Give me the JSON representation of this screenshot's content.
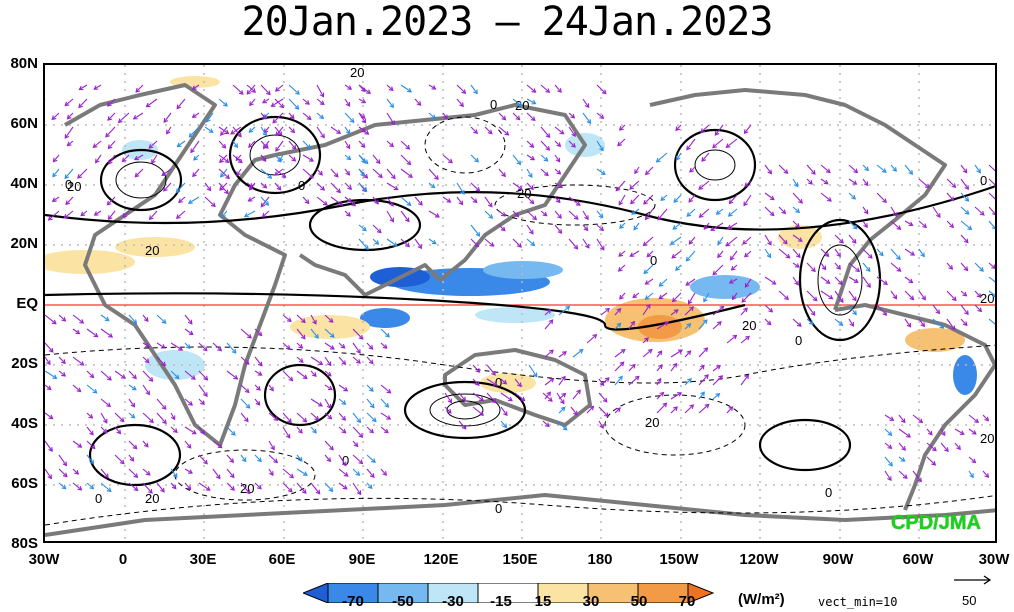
{
  "title": "20Jan.2023 – 24Jan.2023",
  "lat_labels": [
    "80N",
    "60N",
    "40N",
    "20N",
    "EQ",
    "20S",
    "40S",
    "60S",
    "80S"
  ],
  "lon_labels": [
    "30W",
    "0",
    "30E",
    "60E",
    "90E",
    "120E",
    "150E",
    "180",
    "150W",
    "120W",
    "90W",
    "60W",
    "30W"
  ],
  "colorbar": {
    "unit_label": "(W/m²)",
    "tick_labels": [
      "-70",
      "-50",
      "-30",
      "-15",
      "15",
      "30",
      "50",
      "70"
    ],
    "colors": [
      "#1e5fd6",
      "#3a88e8",
      "#76b8f0",
      "#bfe6f7",
      "#ffffff",
      "#fbe3a3",
      "#f7c173",
      "#f29a45",
      "#ee7320"
    ]
  },
  "vector_min_label": "vect_min=10",
  "reference_vector_value": "50",
  "credit": "CPD/JMA",
  "contour_labels": [
    "20",
    "0",
    "0",
    "20",
    "20",
    "0",
    "20",
    "20",
    "0",
    "20",
    "0",
    "0",
    "0",
    "20",
    "20",
    "0",
    "0",
    "0",
    "20",
    "20",
    "0",
    "20"
  ],
  "colors": {
    "coast": "#7a7a7a",
    "equator": "#ff3333",
    "grid": "#bbbbbb",
    "arrow_main": "#9a22cc"
  }
}
